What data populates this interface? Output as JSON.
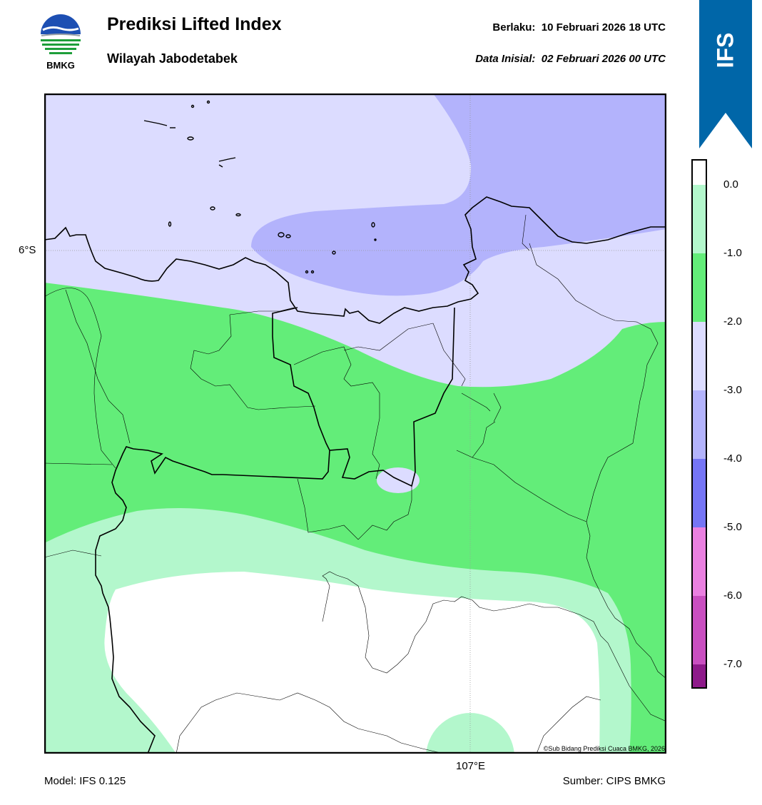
{
  "header": {
    "title": "Prediksi Lifted Index",
    "subtitle": "Wilayah Jabodetabek",
    "valid_line": "Berlaku:  10 Februari 2026 18 UTC",
    "init_line": "Data Inisial:  02 Februari 2026 00 UTC"
  },
  "logo": {
    "text": "BMKG",
    "icon": "bmkg-logo"
  },
  "badge": {
    "text": "IFS",
    "color": "#0066a8"
  },
  "map": {
    "lat_label": "6°S",
    "lon_label": "107°E",
    "copyright": "©Sub Bidang Prediksi Cuaca BMKG, 2026"
  },
  "footer": {
    "model": "Model: IFS 0.125",
    "source": "Sumber: CIPS BMKG"
  },
  "colorbar": {
    "labels": [
      "0.0",
      "-1.0",
      "-2.0",
      "-3.0",
      "-4.0",
      "-5.0",
      "-6.0",
      "-7.0"
    ],
    "colors": [
      "#ffffff",
      "#b3f7cc",
      "#63ed79",
      "#dcdcff",
      "#b3b3fc",
      "#7575f5",
      "#ea80e0",
      "#c94fc0",
      "#8e1a8a"
    ]
  }
}
